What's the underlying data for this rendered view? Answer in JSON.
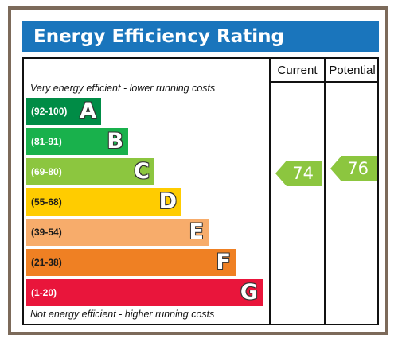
{
  "title": "Energy Efficiency Rating",
  "columns": {
    "current": "Current",
    "potential": "Potential"
  },
  "notes": {
    "top": "Very energy efficient - lower running costs",
    "bottom": "Not energy efficient - higher running costs"
  },
  "bands": [
    {
      "range": "(92-100)",
      "letter": "A",
      "color": "#008c46"
    },
    {
      "range": "(81-91)",
      "letter": "B",
      "color": "#19b14c"
    },
    {
      "range": "(69-80)",
      "letter": "C",
      "color": "#8cc63f"
    },
    {
      "range": "(55-68)",
      "letter": "D",
      "color": "#ffcc00"
    },
    {
      "range": "(39-54)",
      "letter": "E",
      "color": "#f7ac6b"
    },
    {
      "range": "(21-38)",
      "letter": "F",
      "color": "#ef8023"
    },
    {
      "range": "(1-20)",
      "letter": "G",
      "color": "#e9153b"
    }
  ],
  "current": {
    "value": "74",
    "color": "#8cc63f"
  },
  "potential": {
    "value": "76",
    "color": "#8cc63f"
  }
}
